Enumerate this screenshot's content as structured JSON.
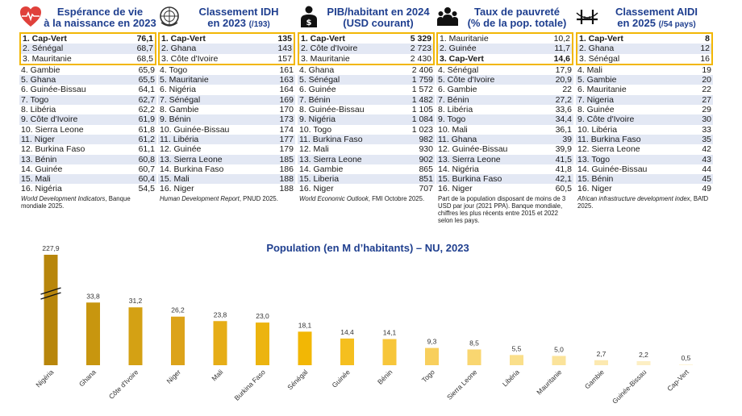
{
  "panels": [
    {
      "title_line1": "Espérance de vie",
      "title_line2": "à la naissance en 2023",
      "title_sub": "",
      "icon": "heart-pulse-icon",
      "top3": [
        {
          "label": "1. Cap-Vert",
          "value": "76,1",
          "bold": true
        },
        {
          "label": "2. Sénégal",
          "value": "68,7",
          "bold": false
        },
        {
          "label": "3. Mauritanie",
          "value": "68,5",
          "bold": false
        }
      ],
      "rest": [
        {
          "label": "4. Gambie",
          "value": "65,9"
        },
        {
          "label": "5. Ghana",
          "value": "65,5"
        },
        {
          "label": "6. Guinée-Bissau",
          "value": "64,1"
        },
        {
          "label": "7. Togo",
          "value": "62,7"
        },
        {
          "label": "8. Libéria",
          "value": "62,2"
        },
        {
          "label": "9. Côte d'Ivoire",
          "value": "61,9"
        },
        {
          "label": "10. Sierra Leone",
          "value": "61,8"
        },
        {
          "label": "11. Niger",
          "value": "61,2"
        },
        {
          "label": "12. Burkina Faso",
          "value": "61,1"
        },
        {
          "label": "13. Bénin",
          "value": "60,8"
        },
        {
          "label": "14. Guinée",
          "value": "60,7"
        },
        {
          "label": "15. Mali",
          "value": "60,4"
        },
        {
          "label": "16. Nigéria",
          "value": "54,5"
        }
      ],
      "source_italic": "World Development Indicators",
      "source_rest": ", Banque mondiale 2025."
    },
    {
      "title_line1": "Classement IDH",
      "title_line2": "en 2023",
      "title_sub": "(/193)",
      "icon": "un-emblem-icon",
      "top3": [
        {
          "label": "1. Cap-Vert",
          "value": "135",
          "bold": true
        },
        {
          "label": "2. Ghana",
          "value": "143",
          "bold": false
        },
        {
          "label": "3. Côte d'Ivoire",
          "value": "157",
          "bold": false
        }
      ],
      "rest": [
        {
          "label": "4. Togo",
          "value": "161"
        },
        {
          "label": "5. Mauritanie",
          "value": "163"
        },
        {
          "label": "6. Nigéria",
          "value": "164"
        },
        {
          "label": "7. Sénégal",
          "value": "169"
        },
        {
          "label": "8. Gambie",
          "value": "170"
        },
        {
          "label": "9. Bénin",
          "value": "173"
        },
        {
          "label": "10. Guinée-Bissau",
          "value": "174"
        },
        {
          "label": "11. Libéria",
          "value": "177"
        },
        {
          "label": "12. Guinée",
          "value": "179"
        },
        {
          "label": "13. Sierra Leone",
          "value": "185"
        },
        {
          "label": "14. Burkina Faso",
          "value": "186"
        },
        {
          "label": "15. Mali",
          "value": "188"
        },
        {
          "label": "16. Niger",
          "value": "188"
        }
      ],
      "source_italic": "Human Development Report",
      "source_rest": ", PNUD 2025."
    },
    {
      "title_line1": "PIB/habitant en 2024",
      "title_line2": "(USD courant)",
      "title_sub": "",
      "icon": "person-money-icon",
      "top3": [
        {
          "label": "1. Cap-Vert",
          "value": "5 329",
          "bold": true
        },
        {
          "label": "2. Côte d'Ivoire",
          "value": "2 723",
          "bold": false
        },
        {
          "label": "3. Mauritanie",
          "value": "2 430",
          "bold": false
        }
      ],
      "rest": [
        {
          "label": "4. Ghana",
          "value": "2 406"
        },
        {
          "label": "5. Sénégal",
          "value": "1 759"
        },
        {
          "label": "6. Guinée",
          "value": "1 572"
        },
        {
          "label": "7. Bénin",
          "value": "1 482"
        },
        {
          "label": "8. Guinée-Bissau",
          "value": "1 105"
        },
        {
          "label": "9. Nigéria",
          "value": "1 084"
        },
        {
          "label": "10. Togo",
          "value": "1 023"
        },
        {
          "label": "11. Burkina Faso",
          "value": "982"
        },
        {
          "label": "12. Mali",
          "value": "930"
        },
        {
          "label": "13. Sierra Leone",
          "value": "902"
        },
        {
          "label": "14. Gambie",
          "value": "865"
        },
        {
          "label": "15. Liberia",
          "value": "851"
        },
        {
          "label": "16. Niger",
          "value": "707"
        }
      ],
      "source_italic": "World Economic Outlook",
      "source_rest": ", FMI Octobre 2025."
    },
    {
      "title_line1": "Taux de pauvreté",
      "title_line2": "(% de la pop. totale)",
      "title_sub": "",
      "icon": "people-group-icon",
      "top3": [
        {
          "label": "1. Mauritanie",
          "value": "10,2",
          "bold": false
        },
        {
          "label": "2. Guinée",
          "value": "11,7",
          "bold": false
        },
        {
          "label": "3. Cap-Vert",
          "value": "14,6",
          "bold": true
        }
      ],
      "rest": [
        {
          "label": "4. Sénégal",
          "value": "17,9"
        },
        {
          "label": "5. Côte d'Ivoire",
          "value": "20,9"
        },
        {
          "label": "6. Gambie",
          "value": "22"
        },
        {
          "label": "7. Bénin",
          "value": "27,2"
        },
        {
          "label": "8. Libéria",
          "value": "33,6"
        },
        {
          "label": "9. Togo",
          "value": "34,4"
        },
        {
          "label": "10. Mali",
          "value": "36,1"
        },
        {
          "label": "11. Ghana",
          "value": "39"
        },
        {
          "label": "12. Guinée-Bissau",
          "value": "39,9"
        },
        {
          "label": "13. Sierra Leone",
          "value": "41,5"
        },
        {
          "label": "14. Nigéria",
          "value": "41,8"
        },
        {
          "label": "15. Burkina Faso",
          "value": "42,1"
        },
        {
          "label": "16. Niger",
          "value": "60,5"
        }
      ],
      "source_italic": "",
      "source_rest": "Part de la population disposant de moins de 3 USD par jour (2021 PPA). Banque mondiale, chiffres les plus récents entre 2015 et 2022 selon les pays."
    },
    {
      "title_line1": "Classement AIDI",
      "title_line2": "en 2025",
      "title_sub": "(/54 pays)",
      "icon": "bridge-icon",
      "top3": [
        {
          "label": "1. Cap-Vert",
          "value": "8",
          "bold": true
        },
        {
          "label": "2. Ghana",
          "value": "12",
          "bold": false
        },
        {
          "label": "3. Sénégal",
          "value": "16",
          "bold": false
        }
      ],
      "rest": [
        {
          "label": "4. Mali",
          "value": "19"
        },
        {
          "label": "5. Gambie",
          "value": "20"
        },
        {
          "label": "6. Mauritanie",
          "value": "22"
        },
        {
          "label": "7. Nigeria",
          "value": "27"
        },
        {
          "label": "8. Guinée",
          "value": "29"
        },
        {
          "label": "9. Côte d'Ivoire",
          "value": "30"
        },
        {
          "label": "10. Libéria",
          "value": "33"
        },
        {
          "label": "11. Burkina Faso",
          "value": "35"
        },
        {
          "label": "12. Sierra Leone",
          "value": "42"
        },
        {
          "label": "13. Togo",
          "value": "43"
        },
        {
          "label": "14. Guinée-Bissau",
          "value": "44"
        },
        {
          "label": "15. Bénin",
          "value": "45"
        },
        {
          "label": "16. Niger",
          "value": "49"
        }
      ],
      "source_italic": "African infrastructure development index",
      "source_rest": ", BAfD 2025."
    }
  ],
  "colors": {
    "title_blue": "#1f3f8f",
    "highlight_border": "#f2b705",
    "row_alt": "#e3e8f4"
  },
  "chart_data": {
    "type": "bar",
    "title": "Population (en M d’habitants) – NU, 2023",
    "categories": [
      "Nigéria",
      "Ghana",
      "Côte d'Ivoire",
      "Niger",
      "Mali",
      "Burkina Faso",
      "Sénégal",
      "Guinée",
      "Bénin",
      "Togo",
      "Sierra Leone",
      "Libéria",
      "Mauritanie",
      "Gambie",
      "Guinée-Bissau",
      "Cap-Vert"
    ],
    "values": [
      227.9,
      33.8,
      31.2,
      26.2,
      23.8,
      23.0,
      18.1,
      14.4,
      14.1,
      9.3,
      8.5,
      5.5,
      5.0,
      2.7,
      2.2,
      0.5
    ],
    "value_labels": [
      "227,9",
      "33,8",
      "31,2",
      "26,2",
      "23,8",
      "23,0",
      "18,1",
      "14,4",
      "14,1",
      "9,3",
      "8,5",
      "5,5",
      "5,0",
      "2,7",
      "2,2",
      "0,5"
    ],
    "axis_break_above": 40,
    "colors": [
      "#b8860b",
      "#c8960f",
      "#d4a114",
      "#dca31a",
      "#e6ad16",
      "#ecb40f",
      "#f2b705",
      "#f5bf1f",
      "#f7c63a",
      "#f8cf5c",
      "#f9d670",
      "#fadf8a",
      "#fbe39a",
      "#fce9b0",
      "#fdefc4",
      "#fef5db"
    ],
    "xlabel": "",
    "ylabel": "",
    "grid": false,
    "legend": "none"
  }
}
